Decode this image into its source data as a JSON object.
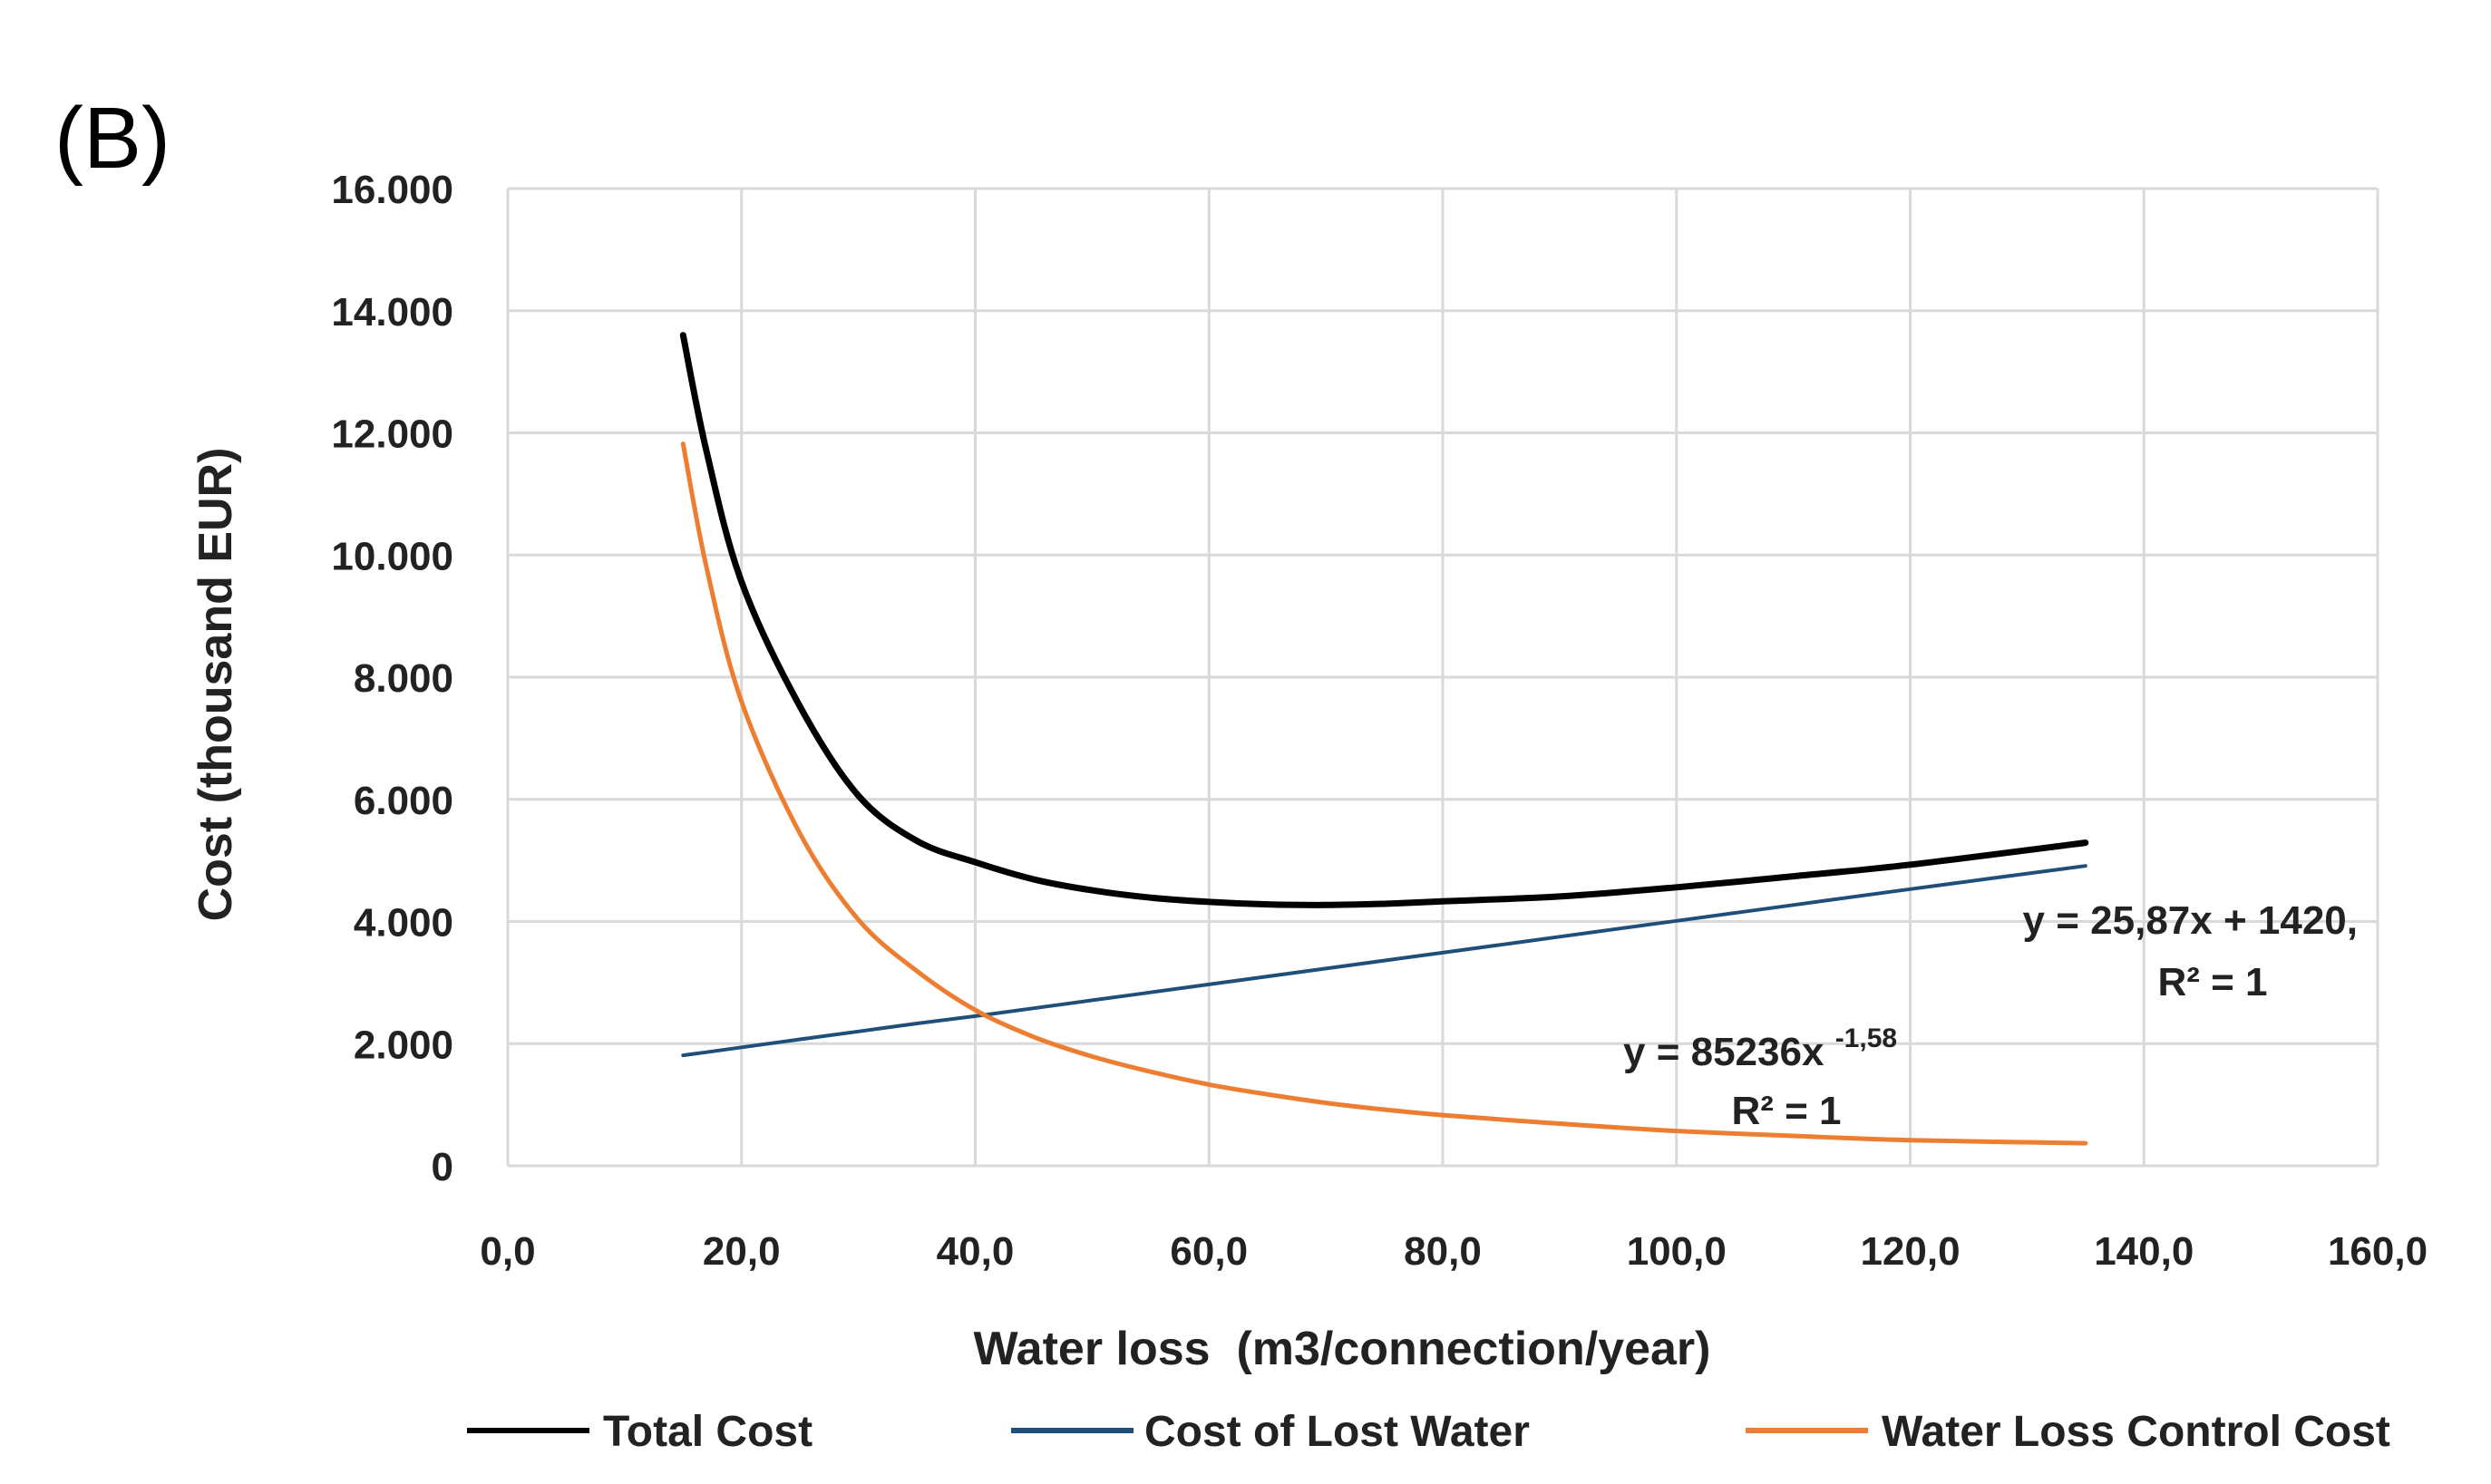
{
  "panel_label": "(B)",
  "colors": {
    "total": "#000000",
    "lost_water": "#1f4e79",
    "control": "#ed7d31",
    "grid": "#d9d9d9"
  },
  "chart_data": {
    "type": "line",
    "title": "",
    "xlabel": "Water loss  (m3/connection/year)",
    "ylabel": "Cost (thousand EUR)",
    "xlim": [
      0,
      160
    ],
    "ylim": [
      0,
      16000
    ],
    "x_ticks": [
      0,
      20,
      40,
      60,
      80,
      100,
      120,
      140,
      160
    ],
    "x_tick_labels": [
      "0,0",
      "20,0",
      "40,0",
      "60,0",
      "80,0",
      "100,0",
      "120,0",
      "140,0",
      "160,0"
    ],
    "y_ticks": [
      0,
      2000,
      4000,
      6000,
      8000,
      10000,
      12000,
      14000,
      16000
    ],
    "y_tick_labels": [
      "0",
      "2.000",
      "4.000",
      "6.000",
      "8.000",
      "10.000",
      "12.000",
      "14.000",
      "16.000"
    ],
    "grid": true,
    "legend_position": "bottom",
    "x": [
      15,
      17,
      20,
      25,
      30,
      35,
      40,
      45,
      50,
      55,
      60,
      65,
      70,
      75,
      80,
      90,
      100,
      110,
      120,
      135
    ],
    "series": [
      {
        "key": "total",
        "name": "Total Cost",
        "values": [
          13600,
          11700,
          9560,
          7520,
          6060,
          5320,
          4970,
          4690,
          4510,
          4390,
          4320,
          4280,
          4270,
          4290,
          4330,
          4410,
          4560,
          4740,
          4930,
          5290
        ]
      },
      {
        "key": "lost_water",
        "name": "Cost of Lost Water",
        "values": [
          1810,
          1860,
          1940,
          2070,
          2200,
          2330,
          2450,
          2580,
          2710,
          2840,
          2970,
          3100,
          3230,
          3360,
          3490,
          3750,
          4010,
          4270,
          4530,
          4910
        ]
      },
      {
        "key": "control",
        "name": "Water Loss Control Cost",
        "values": [
          11820,
          9800,
          7600,
          5440,
          4030,
          3190,
          2550,
          2110,
          1790,
          1540,
          1330,
          1170,
          1030,
          920,
          830,
          690,
          570,
          490,
          420,
          370
        ]
      }
    ],
    "annotations": [
      {
        "key": "linear_eq",
        "line1": "y = 25,87x + 1420,",
        "line2": "R² = 1"
      },
      {
        "key": "power_eq",
        "line1_base": "y = 85236x",
        "line1_exp": "-1,58",
        "line2": "R² = 1"
      }
    ]
  }
}
